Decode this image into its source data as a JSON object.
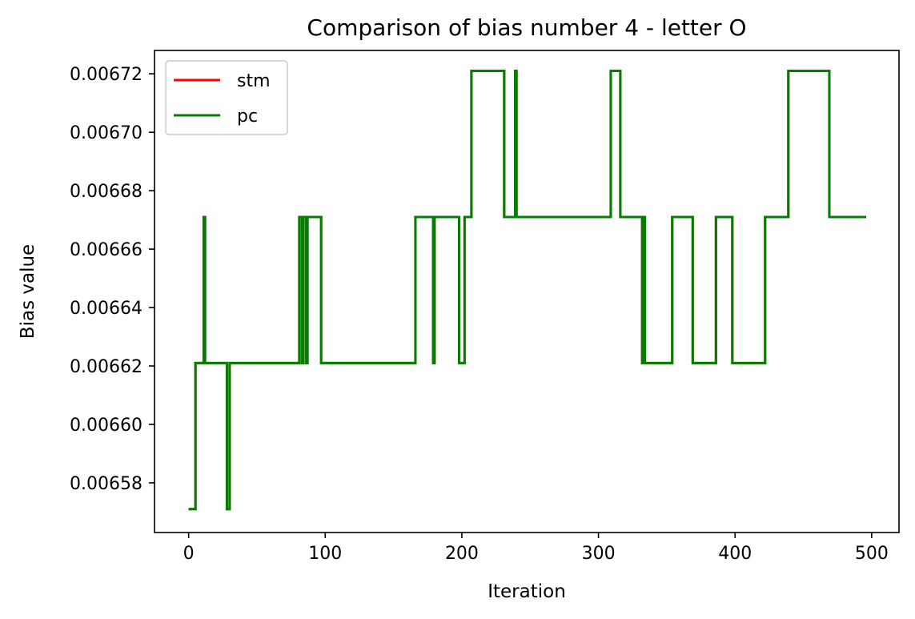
{
  "chart_data": {
    "type": "line",
    "title": "Comparison of bias number 4 - letter O",
    "xlabel": "Iteration",
    "ylabel": "Bias value",
    "xlim": [
      -25,
      520
    ],
    "ylim": [
      0.006563,
      0.006728
    ],
    "xticks": [
      0,
      100,
      200,
      300,
      400,
      500
    ],
    "xtick_labels": [
      "0",
      "100",
      "200",
      "300",
      "400",
      "500"
    ],
    "yticks": [
      0.00658,
      0.0066,
      0.00662,
      0.00664,
      0.00666,
      0.00668,
      0.0067,
      0.00672
    ],
    "ytick_labels": [
      "0.00658",
      "0.00660",
      "0.00662",
      "0.00664",
      "0.00666",
      "0.00668",
      "0.00670",
      "0.00672"
    ],
    "grid": false,
    "legend_position": "upper-left",
    "series": [
      {
        "name": "stm",
        "color": "#ff0000",
        "steps": [
          [
            0,
            0.006571
          ],
          [
            5,
            0.006621
          ],
          [
            11,
            0.006671
          ],
          [
            12,
            0.006621
          ],
          [
            28,
            0.006571
          ],
          [
            30,
            0.006621
          ],
          [
            81,
            0.006671
          ],
          [
            83,
            0.006621
          ],
          [
            84,
            0.006671
          ],
          [
            86,
            0.006621
          ],
          [
            87,
            0.006671
          ],
          [
            97,
            0.006621
          ],
          [
            166,
            0.006671
          ],
          [
            179,
            0.006621
          ],
          [
            180,
            0.006671
          ],
          [
            198,
            0.006621
          ],
          [
            202,
            0.006671
          ],
          [
            207,
            0.006721
          ],
          [
            231,
            0.006671
          ],
          [
            239,
            0.006721
          ],
          [
            240,
            0.006671
          ],
          [
            309,
            0.006721
          ],
          [
            316,
            0.006671
          ],
          [
            332,
            0.006621
          ],
          [
            333,
            0.006671
          ],
          [
            334,
            0.006621
          ],
          [
            354,
            0.006671
          ],
          [
            369,
            0.006621
          ],
          [
            386,
            0.006671
          ],
          [
            398,
            0.006621
          ],
          [
            422,
            0.006671
          ],
          [
            439,
            0.006721
          ],
          [
            469,
            0.006671
          ],
          [
            496,
            0.006671
          ]
        ]
      },
      {
        "name": "pc",
        "color": "#008000",
        "steps": [
          [
            0,
            0.006571
          ],
          [
            5,
            0.006621
          ],
          [
            11,
            0.006671
          ],
          [
            12,
            0.006621
          ],
          [
            28,
            0.006571
          ],
          [
            30,
            0.006621
          ],
          [
            81,
            0.006671
          ],
          [
            83,
            0.006621
          ],
          [
            84,
            0.006671
          ],
          [
            86,
            0.006621
          ],
          [
            87,
            0.006671
          ],
          [
            97,
            0.006621
          ],
          [
            166,
            0.006671
          ],
          [
            179,
            0.006621
          ],
          [
            180,
            0.006671
          ],
          [
            198,
            0.006621
          ],
          [
            202,
            0.006671
          ],
          [
            207,
            0.006721
          ],
          [
            231,
            0.006671
          ],
          [
            239,
            0.006721
          ],
          [
            240,
            0.006671
          ],
          [
            309,
            0.006721
          ],
          [
            316,
            0.006671
          ],
          [
            332,
            0.006621
          ],
          [
            333,
            0.006671
          ],
          [
            334,
            0.006621
          ],
          [
            354,
            0.006671
          ],
          [
            369,
            0.006621
          ],
          [
            386,
            0.006671
          ],
          [
            398,
            0.006621
          ],
          [
            422,
            0.006671
          ],
          [
            439,
            0.006721
          ],
          [
            469,
            0.006671
          ],
          [
            496,
            0.006671
          ]
        ]
      }
    ]
  }
}
